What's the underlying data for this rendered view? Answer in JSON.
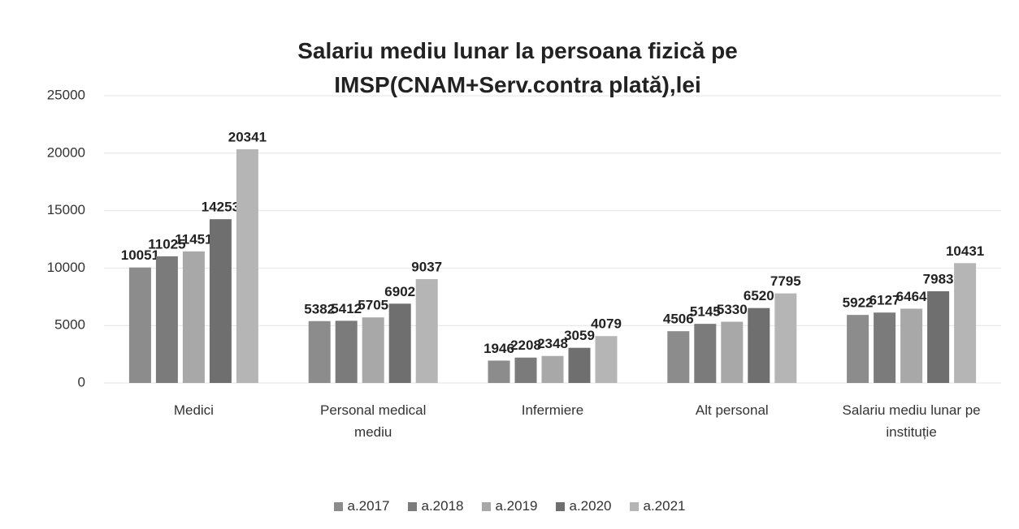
{
  "chart_data": {
    "type": "bar",
    "title": "Salariu mediu lunar la persoana fizică pe IMSP(CNAM+Serv.contra plată),lei",
    "categories": [
      "Medici",
      "Personal medical mediu",
      "Infermiere",
      "Alt personal",
      "Salariu mediu lunar pe instituție"
    ],
    "series": [
      {
        "name": "a.2017",
        "color": "#8c8c8c",
        "values": [
          10051,
          5382,
          1946,
          4506,
          5922
        ]
      },
      {
        "name": "a.2018",
        "color": "#7b7b7b",
        "values": [
          11025,
          5412,
          2208,
          5145,
          6127
        ]
      },
      {
        "name": "a.2019",
        "color": "#a8a8a8",
        "values": [
          11451,
          5705,
          2348,
          5330,
          6464
        ]
      },
      {
        "name": "a.2020",
        "color": "#6f6f6f",
        "values": [
          14253,
          6902,
          3059,
          6520,
          7983
        ]
      },
      {
        "name": "a.2021",
        "color": "#b5b5b5",
        "values": [
          20341,
          9037,
          4079,
          7795,
          10431
        ]
      }
    ],
    "ylim": [
      0,
      25000
    ],
    "yticks": [
      0,
      5000,
      10000,
      15000,
      20000,
      25000
    ],
    "grid": true,
    "legend": "bottom"
  }
}
